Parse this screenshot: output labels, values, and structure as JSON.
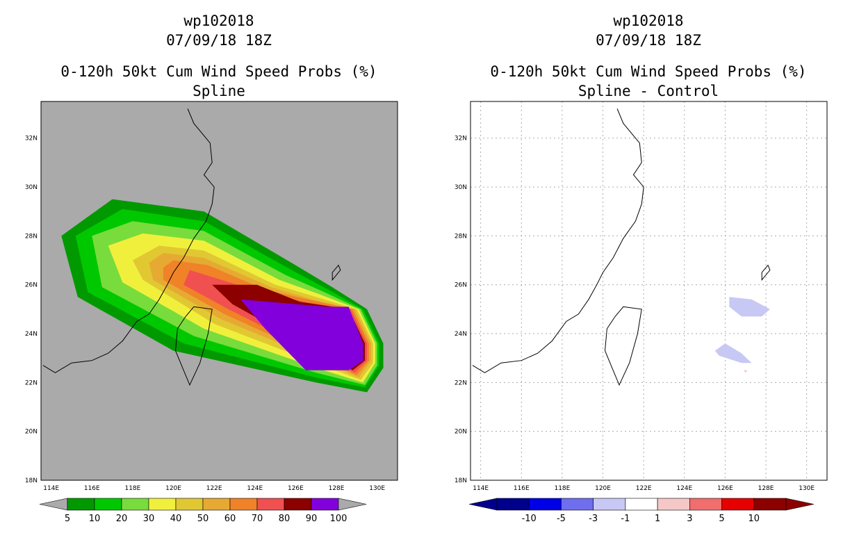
{
  "chart_data": [
    {
      "type": "heatmap",
      "panel": "left",
      "storm_id": "wp102018",
      "datetime": "07/09/18 18Z",
      "title": "0-120h 50kt Cum Wind Speed Probs (%)",
      "subtitle": "Spline",
      "x_ticks": [
        "114E",
        "116E",
        "118E",
        "120E",
        "122E",
        "124E",
        "126E",
        "128E",
        "130E"
      ],
      "y_ticks": [
        "18N",
        "20N",
        "22N",
        "24N",
        "26N",
        "28N",
        "30N",
        "32N"
      ],
      "xlim": [
        113.5,
        131.0
      ],
      "ylim": [
        18.0,
        33.5
      ],
      "background_color": "#aaaaaa",
      "colorbar": {
        "labels": [
          "5",
          "10",
          "20",
          "30",
          "40",
          "50",
          "60",
          "70",
          "80",
          "90",
          "100"
        ],
        "colors": [
          "#009a00",
          "#00c800",
          "#78dc3c",
          "#f0f03c",
          "#e1c832",
          "#e6aa32",
          "#f08228",
          "#f05050",
          "#8c0000",
          "#8200dc"
        ]
      },
      "contours": [
        {
          "level": 5,
          "color": "#009a00",
          "lon": [
            117.0,
            121.5,
            126.0,
            127.8,
            129.5,
            130.3,
            130.3,
            129.5,
            127.0,
            120.0,
            115.3,
            114.5
          ],
          "lat": [
            29.5,
            29.0,
            26.8,
            25.9,
            25.0,
            23.6,
            22.6,
            21.6,
            22.0,
            23.3,
            25.5,
            28.0
          ]
        },
        {
          "level": 10,
          "color": "#00c800",
          "lon": [
            117.5,
            121.5,
            125.8,
            127.6,
            129.3,
            130.1,
            130.1,
            129.4,
            127.0,
            120.5,
            115.8,
            115.2
          ],
          "lat": [
            29.1,
            28.6,
            26.6,
            25.8,
            25.0,
            23.6,
            22.7,
            21.8,
            22.2,
            23.6,
            25.7,
            28.0
          ]
        },
        {
          "level": 20,
          "color": "#78dc3c",
          "lon": [
            118.0,
            121.5,
            125.5,
            127.4,
            129.2,
            130.0,
            130.0,
            129.4,
            127.0,
            121.0,
            116.5,
            116.0
          ],
          "lat": [
            28.6,
            28.2,
            26.4,
            25.7,
            25.0,
            23.6,
            22.7,
            21.9,
            22.4,
            23.9,
            25.9,
            28.0
          ]
        },
        {
          "level": 30,
          "color": "#f0f03c",
          "lon": [
            118.5,
            121.5,
            125.2,
            127.2,
            129.1,
            129.9,
            129.9,
            129.3,
            127.0,
            121.5,
            117.5,
            116.8
          ],
          "lat": [
            28.1,
            27.8,
            26.2,
            25.6,
            25.0,
            23.6,
            22.8,
            22.0,
            22.6,
            24.2,
            26.1,
            27.6
          ]
        },
        {
          "level": 40,
          "color": "#e1c832",
          "lon": [
            119.3,
            121.5,
            125.0,
            127.0,
            129.0,
            129.8,
            129.8,
            129.2,
            127.0,
            122.0,
            118.5,
            118.0
          ],
          "lat": [
            27.6,
            27.4,
            26.0,
            25.5,
            25.0,
            23.6,
            22.8,
            22.1,
            22.8,
            24.4,
            26.2,
            27.0
          ]
        },
        {
          "level": 50,
          "color": "#e6aa32",
          "lon": [
            119.5,
            121.5,
            124.8,
            126.8,
            128.9,
            129.7,
            129.7,
            129.1,
            127.0,
            122.3,
            119.0,
            118.8
          ],
          "lat": [
            27.3,
            27.1,
            25.9,
            25.4,
            25.0,
            23.6,
            22.9,
            22.2,
            23.0,
            24.6,
            26.2,
            26.9
          ]
        },
        {
          "level": 60,
          "color": "#f08228",
          "lon": [
            120.0,
            121.7,
            124.5,
            126.6,
            128.8,
            129.6,
            129.6,
            129.0,
            127.0,
            122.5,
            119.5,
            119.5
          ],
          "lat": [
            27.0,
            26.8,
            25.8,
            25.4,
            25.0,
            23.6,
            22.9,
            22.3,
            23.1,
            24.8,
            26.2,
            26.7
          ]
        },
        {
          "level": 70,
          "color": "#f05050",
          "lon": [
            120.8,
            124.3,
            126.4,
            128.7,
            129.5,
            129.5,
            128.9,
            127.0,
            122.7,
            120.5
          ],
          "lat": [
            26.6,
            25.7,
            25.3,
            25.0,
            23.6,
            22.9,
            22.4,
            23.2,
            25.0,
            26.0
          ]
        },
        {
          "level": 80,
          "color": "#8c0000",
          "lon": [
            121.9,
            124.1,
            126.2,
            128.6,
            129.4,
            129.4,
            128.8,
            127.0,
            122.9
          ],
          "lat": [
            26.0,
            26.0,
            25.3,
            25.0,
            23.6,
            22.9,
            22.5,
            23.3,
            25.2
          ]
        },
        {
          "level": 90,
          "color": "#8200dc",
          "lon": [
            123.3,
            127.5,
            128.6,
            129.3,
            129.3,
            128.6,
            126.5,
            124.5
          ],
          "lat": [
            25.4,
            25.1,
            25.1,
            23.6,
            22.9,
            22.5,
            22.5,
            24.2
          ]
        }
      ]
    },
    {
      "type": "heatmap",
      "panel": "right",
      "storm_id": "wp102018",
      "datetime": "07/09/18 18Z",
      "title": "0-120h 50kt Cum Wind Speed Probs (%)",
      "subtitle": "Spline - Control",
      "x_ticks": [
        "114E",
        "116E",
        "118E",
        "120E",
        "122E",
        "124E",
        "126E",
        "128E",
        "130E"
      ],
      "y_ticks": [
        "18N",
        "20N",
        "22N",
        "24N",
        "26N",
        "28N",
        "30N",
        "32N"
      ],
      "xlim": [
        113.5,
        131.0
      ],
      "ylim": [
        18.0,
        33.5
      ],
      "background_color": "#ffffff",
      "grid": true,
      "colorbar": {
        "labels": [
          "-10",
          "-5",
          "-3",
          "-1",
          "1",
          "3",
          "5",
          "10"
        ],
        "colors": [
          "#00008c",
          "#0000e6",
          "#6e6eee",
          "#c8c8f5",
          "#ffffff",
          "#f5c8c8",
          "#f06e6e",
          "#e60000",
          "#8c0000"
        ]
      },
      "contours": [
        {
          "level": -3,
          "color": "#c8c8f5",
          "lon": [
            126.2,
            127.3,
            128.2,
            127.8,
            126.8,
            126.2
          ],
          "lat": [
            25.5,
            25.4,
            25.0,
            24.7,
            24.7,
            25.1
          ]
        },
        {
          "level": -3,
          "color": "#c8c8f5",
          "lon": [
            125.5,
            126.0,
            126.8,
            127.3,
            126.8,
            125.7
          ],
          "lat": [
            23.3,
            23.6,
            23.2,
            22.8,
            22.8,
            23.1
          ]
        },
        {
          "level": 3,
          "color": "#f5c8c8",
          "lon": [
            126.9,
            127.1,
            127.0
          ],
          "lat": [
            22.5,
            22.5,
            22.4
          ]
        }
      ]
    }
  ]
}
